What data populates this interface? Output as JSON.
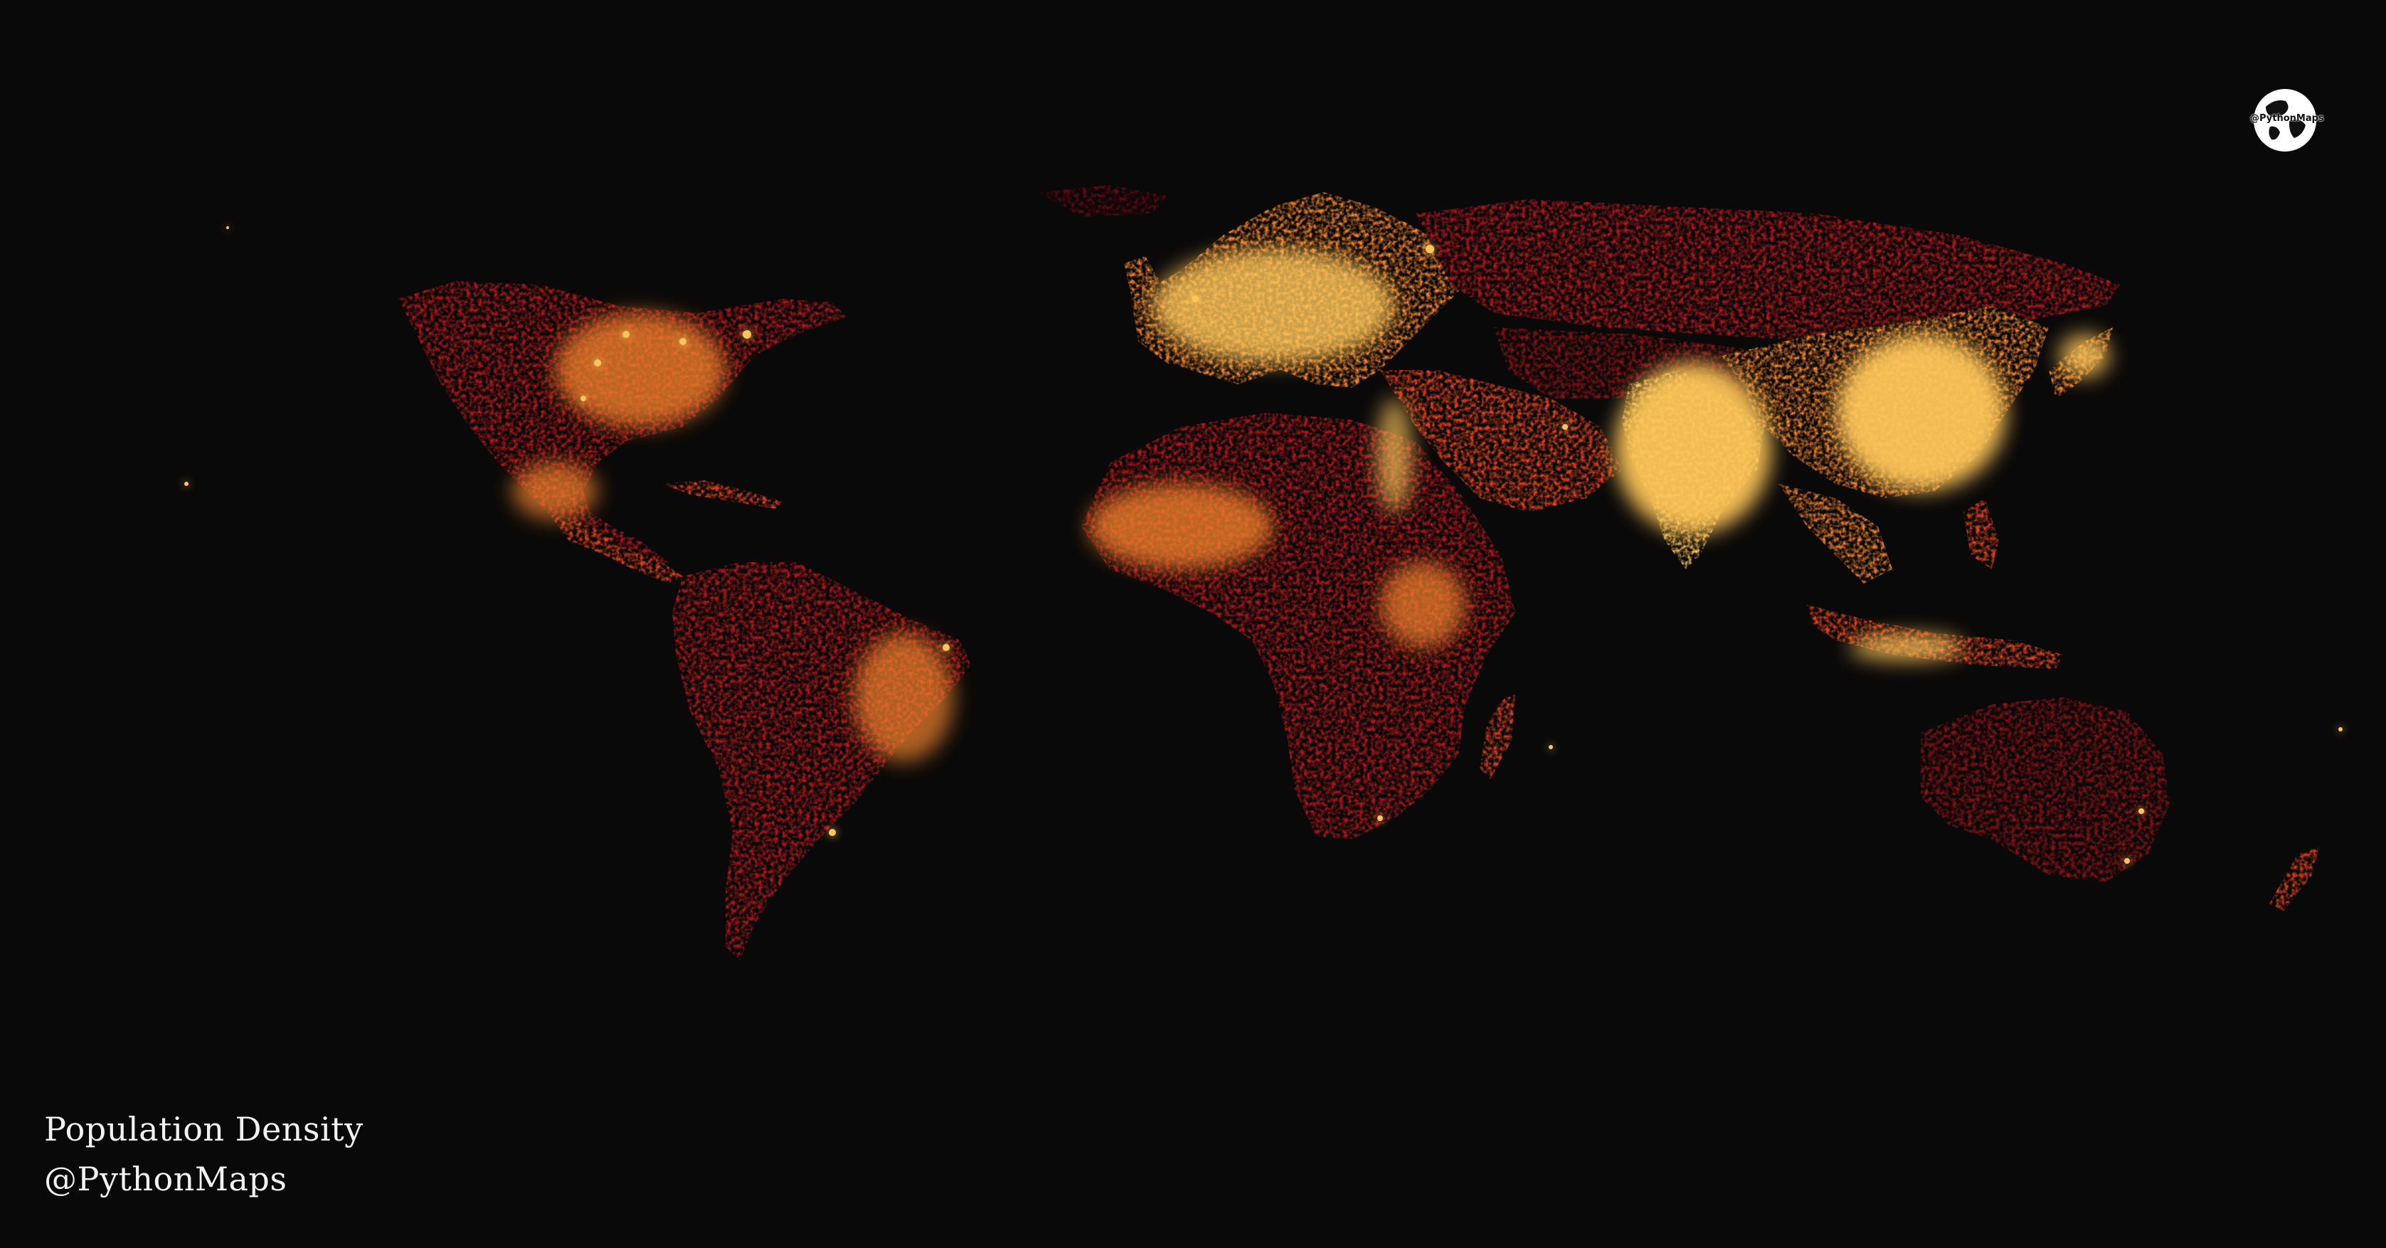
{
  "map": {
    "title": "Population Density",
    "handle": "@PythonMaps",
    "logo_text": "@PythonMaps",
    "colors": {
      "background": "#0a0909",
      "low": "#5a0a12",
      "mid_low": "#b4181c",
      "mid": "#e8431e",
      "mid_high": "#f5852e",
      "high": "#fdc55a"
    },
    "projection": "equirectangular",
    "color_scale": [
      "low",
      "mid_low",
      "mid",
      "mid_high",
      "high"
    ],
    "regions": [
      {
        "name": "North America",
        "density": "medium"
      },
      {
        "name": "South America",
        "density": "medium"
      },
      {
        "name": "Europe",
        "density": "high"
      },
      {
        "name": "Africa",
        "density": "medium"
      },
      {
        "name": "India",
        "density": "very high"
      },
      {
        "name": "China",
        "density": "very high"
      },
      {
        "name": "Southeast Asia",
        "density": "high"
      },
      {
        "name": "Russia",
        "density": "low"
      },
      {
        "name": "Australia",
        "density": "low"
      }
    ]
  }
}
